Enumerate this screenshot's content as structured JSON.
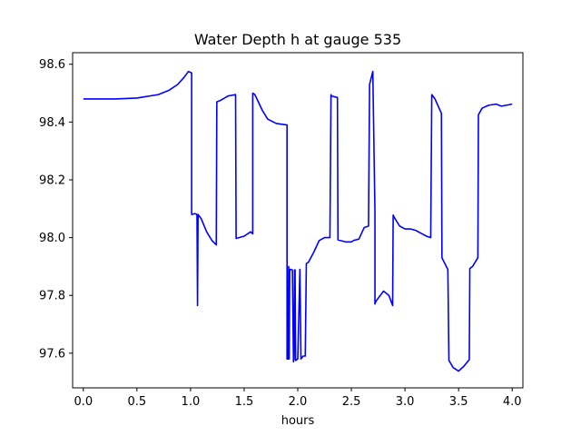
{
  "chart_data": {
    "type": "line",
    "title": "Water Depth h at gauge 535",
    "xlabel": "hours",
    "ylabel": "",
    "xlim": [
      -0.1,
      4.1
    ],
    "ylim": [
      97.48,
      98.64
    ],
    "grid": false,
    "x_ticks": [
      0.0,
      0.5,
      1.0,
      1.5,
      2.0,
      2.5,
      3.0,
      3.5,
      4.0
    ],
    "x_tick_labels": [
      "0.0",
      "0.5",
      "1.0",
      "1.5",
      "2.0",
      "2.5",
      "3.0",
      "3.5",
      "4.0"
    ],
    "y_ticks": [
      97.6,
      97.8,
      98.0,
      98.2,
      98.4,
      98.6
    ],
    "y_tick_labels": [
      "97.6",
      "97.8",
      "98.0",
      "98.2",
      "98.4",
      "98.6"
    ],
    "colors": {
      "series": "#0000ff",
      "axes": "#000000",
      "background": "#ffffff"
    },
    "series": [
      {
        "x": [
          0.0,
          0.3,
          0.5,
          0.7,
          0.8,
          0.88,
          0.94,
          0.98,
          1.01,
          1.01,
          1.04,
          1.06,
          1.065,
          1.07,
          1.07,
          1.1,
          1.15,
          1.2,
          1.24,
          1.245,
          1.28,
          1.35,
          1.42,
          1.425,
          1.5,
          1.56,
          1.58,
          1.58,
          1.6,
          1.67,
          1.72,
          1.8,
          1.9,
          1.9,
          1.91,
          1.915,
          1.92,
          1.925,
          1.93,
          1.95,
          1.96,
          1.965,
          1.97,
          1.975,
          1.98,
          2.0,
          2.02,
          2.03,
          2.05,
          2.07,
          2.08,
          2.1,
          2.15,
          2.2,
          2.25,
          2.3,
          2.31,
          2.315,
          2.37,
          2.375,
          2.45,
          2.5,
          2.52,
          2.57,
          2.62,
          2.66,
          2.67,
          2.7,
          2.72,
          2.72,
          2.73,
          2.75,
          2.8,
          2.85,
          2.885,
          2.89,
          2.9,
          2.95,
          3.0,
          3.05,
          3.1,
          3.15,
          3.2,
          3.24,
          3.25,
          3.28,
          3.34,
          3.345,
          3.4,
          3.41,
          3.45,
          3.5,
          3.55,
          3.6,
          3.605,
          3.63,
          3.68,
          3.685,
          3.72,
          3.78,
          3.85,
          3.9,
          4.0
        ],
        "y": [
          98.48,
          98.48,
          98.483,
          98.495,
          98.51,
          98.53,
          98.555,
          98.575,
          98.57,
          98.08,
          98.083,
          98.08,
          97.765,
          98.08,
          98.08,
          98.065,
          98.02,
          97.99,
          97.975,
          98.47,
          98.475,
          98.49,
          98.495,
          97.997,
          98.005,
          98.02,
          98.013,
          98.5,
          98.495,
          98.44,
          98.41,
          98.395,
          98.39,
          97.58,
          97.58,
          97.9,
          97.58,
          97.89,
          97.89,
          97.888,
          97.57,
          97.58,
          97.888,
          97.888,
          97.575,
          97.58,
          97.89,
          97.58,
          97.59,
          97.59,
          97.91,
          97.915,
          97.95,
          97.99,
          98.0,
          98.0,
          98.495,
          98.49,
          98.485,
          97.992,
          97.985,
          97.985,
          97.99,
          97.995,
          98.035,
          98.04,
          98.53,
          98.575,
          98.09,
          97.77,
          97.78,
          97.79,
          97.815,
          97.8,
          97.765,
          98.078,
          98.07,
          98.04,
          98.03,
          98.03,
          98.025,
          98.015,
          98.005,
          98.0,
          98.495,
          98.48,
          98.43,
          97.93,
          97.89,
          97.575,
          97.55,
          97.538,
          97.555,
          97.578,
          97.893,
          97.9,
          97.93,
          98.425,
          98.448,
          98.458,
          98.462,
          98.455,
          98.462
        ]
      }
    ]
  }
}
